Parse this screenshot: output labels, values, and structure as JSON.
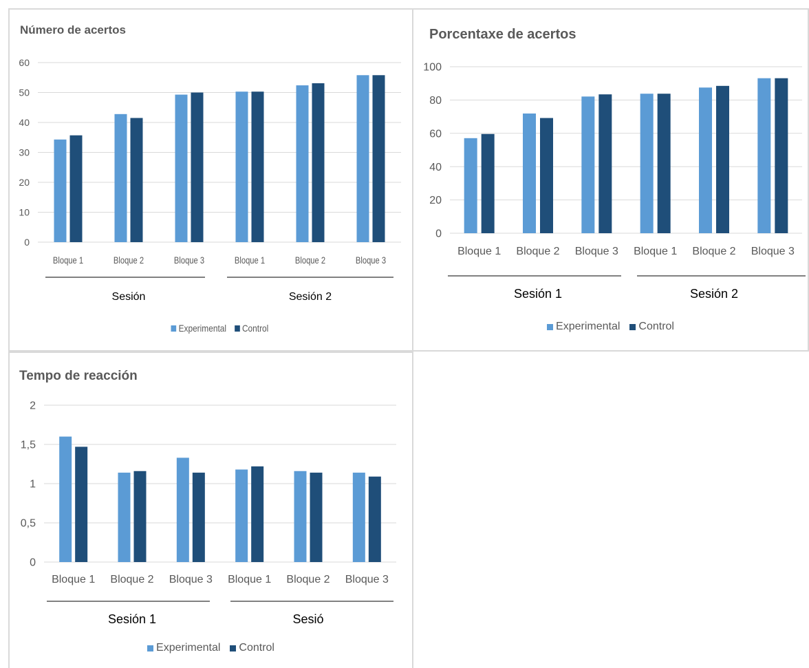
{
  "colors": {
    "experimental": "#5b9bd5",
    "control": "#1f4e79",
    "gridline": "#d9d9d9",
    "text": "#595959"
  },
  "chart_data": [
    {
      "type": "bar",
      "title": "Número de acertos",
      "categories": [
        "Bloque 1",
        "Bloque 2",
        "Bloque 3",
        "Bloque 1",
        "Bloque 2",
        "Bloque 3"
      ],
      "groups": [
        {
          "label": "Sesión",
          "categories": [
            0,
            1,
            2
          ]
        },
        {
          "label": "Sesión 2",
          "categories": [
            3,
            4,
            5
          ]
        }
      ],
      "series": [
        {
          "name": "Experimental",
          "values": [
            34.3,
            42.8,
            49.3,
            50.3,
            52.4,
            55.8
          ]
        },
        {
          "name": "Control",
          "values": [
            35.7,
            41.5,
            50.0,
            50.3,
            53.1,
            55.8
          ]
        }
      ],
      "yticks": [
        "0",
        "10",
        "20",
        "30",
        "40",
        "50",
        "60"
      ],
      "ylim": [
        0,
        60
      ],
      "grid": true,
      "legend_position": "bottom"
    },
    {
      "type": "bar",
      "title": "Porcentaxe de acertos",
      "categories": [
        "Bloque 1",
        "Bloque 2",
        "Bloque 3",
        "Bloque 1",
        "Bloque 2",
        "Bloque 3"
      ],
      "groups": [
        {
          "label": "Sesión 1",
          "categories": [
            0,
            1,
            2
          ]
        },
        {
          "label": "Sesión 2",
          "categories": [
            3,
            4,
            5
          ]
        }
      ],
      "series": [
        {
          "name": "Experimental",
          "values": [
            57.1,
            71.9,
            82.1,
            83.8,
            87.5,
            93.1
          ]
        },
        {
          "name": "Control",
          "values": [
            59.6,
            69.2,
            83.4,
            83.8,
            88.5,
            93.1
          ]
        }
      ],
      "yticks": [
        "0",
        "20",
        "40",
        "60",
        "80",
        "100"
      ],
      "ylim": [
        0,
        100
      ],
      "grid": true,
      "legend_position": "bottom"
    },
    {
      "type": "bar",
      "title": "Tempo de reacción",
      "categories": [
        "Bloque 1",
        "Bloque 2",
        "Bloque 3",
        "Bloque 1",
        "Bloque 2",
        "Bloque 3"
      ],
      "groups": [
        {
          "label": "Sesión 1",
          "categories": [
            0,
            1,
            2
          ]
        },
        {
          "label": "Sesió",
          "categories": [
            3,
            4,
            5
          ]
        }
      ],
      "series": [
        {
          "name": "Experimental",
          "values": [
            1.6,
            1.14,
            1.33,
            1.18,
            1.16,
            1.14
          ]
        },
        {
          "name": "Control",
          "values": [
            1.47,
            1.16,
            1.14,
            1.22,
            1.14,
            1.09
          ]
        }
      ],
      "yticks": [
        "0",
        "0,5",
        "1",
        "1,5",
        "2"
      ],
      "ylim": [
        0,
        2
      ],
      "grid": true,
      "legend_position": "bottom"
    }
  ]
}
